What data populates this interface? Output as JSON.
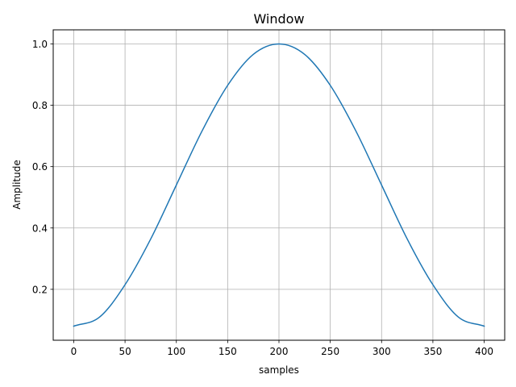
{
  "chart_data": {
    "type": "line",
    "title": "Window",
    "xlabel": "samples",
    "ylabel": "Amplitude",
    "xlim": [
      -20,
      420
    ],
    "ylim": [
      0.034,
      1.046
    ],
    "xticks": [
      0,
      50,
      100,
      150,
      200,
      250,
      300,
      350,
      400
    ],
    "yticks": [
      0.2,
      0.4,
      0.6,
      0.8,
      1.0
    ],
    "xtick_labels": [
      "0",
      "50",
      "100",
      "150",
      "200",
      "250",
      "300",
      "350",
      "400"
    ],
    "ytick_labels": [
      "0.2",
      "0.4",
      "0.6",
      "0.8",
      "1.0"
    ],
    "grid": true,
    "series": [
      {
        "color": "#1f77b4",
        "x": [
          0,
          25,
          50,
          75,
          100,
          125,
          150,
          175,
          200,
          225,
          250,
          275,
          300,
          325,
          350,
          375,
          400
        ],
        "y": [
          0.08,
          0.109,
          0.215,
          0.364,
          0.54,
          0.716,
          0.865,
          0.966,
          1.0,
          0.966,
          0.865,
          0.716,
          0.54,
          0.364,
          0.215,
          0.109,
          0.08
        ]
      }
    ]
  }
}
